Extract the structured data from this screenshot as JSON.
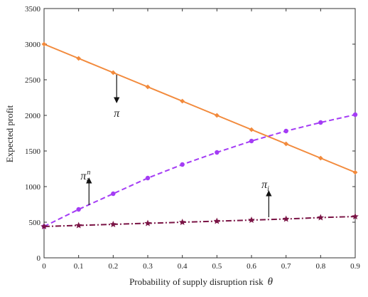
{
  "chart_data": {
    "type": "line",
    "title": "",
    "xlabel": "Probability of supply disruption risk",
    "xlabel_symbol": "θ",
    "ylabel": "Expected profit",
    "xlim": [
      0,
      0.9
    ],
    "ylim": [
      0,
      3500
    ],
    "x_ticks": [
      "0",
      "0.1",
      "0.2",
      "0.3",
      "0.4",
      "0.5",
      "0.6",
      "0.7",
      "0.8",
      "0.9"
    ],
    "y_ticks": [
      "0",
      "500",
      "1000",
      "1500",
      "2000",
      "2500",
      "3000",
      "3500"
    ],
    "grid": false,
    "x": [
      0,
      0.1,
      0.2,
      0.3,
      0.4,
      0.5,
      0.6,
      0.7,
      0.8,
      0.9
    ],
    "series": [
      {
        "key": "pi",
        "color": "#f28a3c",
        "style": "solid",
        "marker": "diamond",
        "values": [
          3000,
          2800,
          2600,
          2400,
          2200,
          2000,
          1800,
          1600,
          1400,
          1200
        ]
      },
      {
        "key": "pi_n_i",
        "color": "#a43cf5",
        "style": "dashed",
        "marker": "circle",
        "values": [
          440,
          680,
          900,
          1120,
          1310,
          1480,
          1640,
          1780,
          1900,
          2010
        ]
      },
      {
        "key": "pi_i",
        "color": "#7a1445",
        "style": "dashdot",
        "marker": "star",
        "values": [
          440,
          455,
          470,
          485,
          500,
          515,
          530,
          545,
          565,
          580
        ]
      }
    ],
    "annotations": [
      {
        "key": "pi",
        "text": "π",
        "sub": "",
        "sup": "",
        "arrow": "down",
        "at": [
          0.21,
          2570
        ],
        "label": [
          0.21,
          1980
        ],
        "arrow_from": [
          0.21,
          2570
        ],
        "arrow_to": [
          0.21,
          2180
        ]
      },
      {
        "key": "pi_n_i",
        "text": "π",
        "sub": "i",
        "sup": "n",
        "arrow": "up",
        "at": [
          0.13,
          700
        ],
        "label": [
          0.12,
          1100
        ],
        "arrow_from": [
          0.13,
          740
        ],
        "arrow_to": [
          0.13,
          1120
        ]
      },
      {
        "key": "pi_i",
        "text": "π",
        "sub": "i",
        "sup": "",
        "arrow": "up",
        "at": [
          0.65,
          530
        ],
        "label": [
          0.64,
          980
        ],
        "arrow_from": [
          0.65,
          570
        ],
        "arrow_to": [
          0.65,
          940
        ]
      }
    ]
  }
}
